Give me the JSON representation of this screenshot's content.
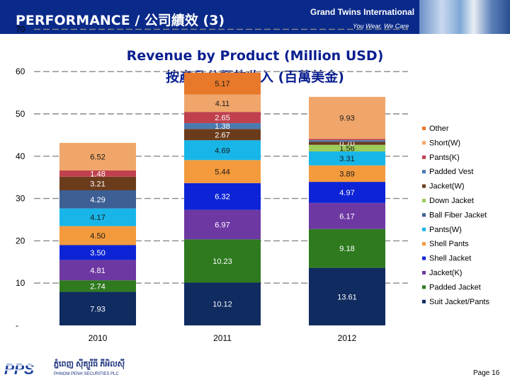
{
  "header": {
    "title": "PERFORMANCE / 公司績效 (3)",
    "company": "Grand Twins International",
    "slogan": "You Wear, We Care"
  },
  "footer": {
    "logo_text": "PPS",
    "company_km": "ភ្នំពេញ ស៊ីគ្យួរីធី ភីអិលស៊ី",
    "company_en": "PHNOM PENH SECURITIES PLC",
    "page_label": "Page 16"
  },
  "chart_data": {
    "type": "bar",
    "stacked": true,
    "title": "Revenue by Product (Million USD)",
    "subtitle": "按產品分類的收入 (百萬美金)",
    "categories": [
      "2010",
      "2011",
      "2012"
    ],
    "ylim": [
      0,
      70
    ],
    "y_ticks": [
      "-",
      "10",
      "20",
      "30",
      "40",
      "50",
      "60",
      "70"
    ],
    "grid": true,
    "legend_position": "right",
    "series": [
      {
        "name": "Suit Jacket/Pants",
        "color": "#0f2b60",
        "values": [
          7.93,
          10.12,
          13.61
        ],
        "labels": [
          "7.93",
          "10.12",
          "13.61"
        ]
      },
      {
        "name": "Padded Jacket",
        "color": "#2f7a1f",
        "values": [
          2.74,
          10.23,
          9.18
        ],
        "labels": [
          "2.74",
          "10.23",
          "9.18"
        ]
      },
      {
        "name": "Jacket(K)",
        "color": "#6e38a3",
        "values": [
          4.81,
          6.97,
          6.17
        ],
        "labels": [
          "4.81",
          "6.97",
          "6.17"
        ]
      },
      {
        "name": "Shell Jacket",
        "color": "#0d24d6",
        "values": [
          3.5,
          6.32,
          4.97
        ],
        "labels": [
          "3.50",
          "6.32",
          "4.97"
        ]
      },
      {
        "name": "Shell Pants",
        "color": "#f39a3c",
        "values": [
          4.5,
          5.44,
          3.89
        ],
        "labels": [
          "4.50",
          "5.44",
          "3.89"
        ]
      },
      {
        "name": "Pants(W)",
        "color": "#18b6e8",
        "values": [
          4.17,
          4.69,
          3.31
        ],
        "labels": [
          "4.17",
          "4.69",
          "3.31"
        ]
      },
      {
        "name": "Ball Fiber Jacket",
        "color": "#3d5f94",
        "values": [
          4.29,
          0,
          0
        ],
        "labels": [
          "4.29",
          "",
          ""
        ]
      },
      {
        "name": "Down Jacket",
        "color": "#9ccc5a",
        "values": [
          0,
          0,
          1.56
        ],
        "labels": [
          "",
          "",
          "1.56"
        ]
      },
      {
        "name": "Jacket(W)",
        "color": "#6b3c1c",
        "values": [
          3.21,
          2.67,
          0.7
        ],
        "labels": [
          "3.21",
          "2.67",
          "0.70"
        ]
      },
      {
        "name": "Padded Vest",
        "color": "#4a7ab0",
        "values": [
          0,
          1.38,
          0.4
        ],
        "labels": [
          "",
          "1.38",
          ""
        ]
      },
      {
        "name": "Pants(K)",
        "color": "#c0404e",
        "values": [
          1.48,
          2.65,
          0.3
        ],
        "labels": [
          "1.48",
          "2.65",
          ""
        ]
      },
      {
        "name": "Short(W)",
        "color": "#f0a66a",
        "values": [
          6.52,
          4.11,
          9.93
        ],
        "labels": [
          "6.52",
          "4.11",
          "9.93"
        ]
      },
      {
        "name": "Other",
        "color": "#e8782a",
        "values": [
          0,
          5.17,
          0
        ],
        "labels": [
          "",
          "5.17",
          ""
        ]
      }
    ],
    "legend_order": [
      "Other",
      "Short(W)",
      "Pants(K)",
      "Padded Vest",
      "Jacket(W)",
      "Down Jacket",
      "Ball Fiber Jacket",
      "Pants(W)",
      "Shell Pants",
      "Shell Jacket",
      "Jacket(K)",
      "Padded Jacket",
      "Suit Jacket/Pants"
    ]
  }
}
